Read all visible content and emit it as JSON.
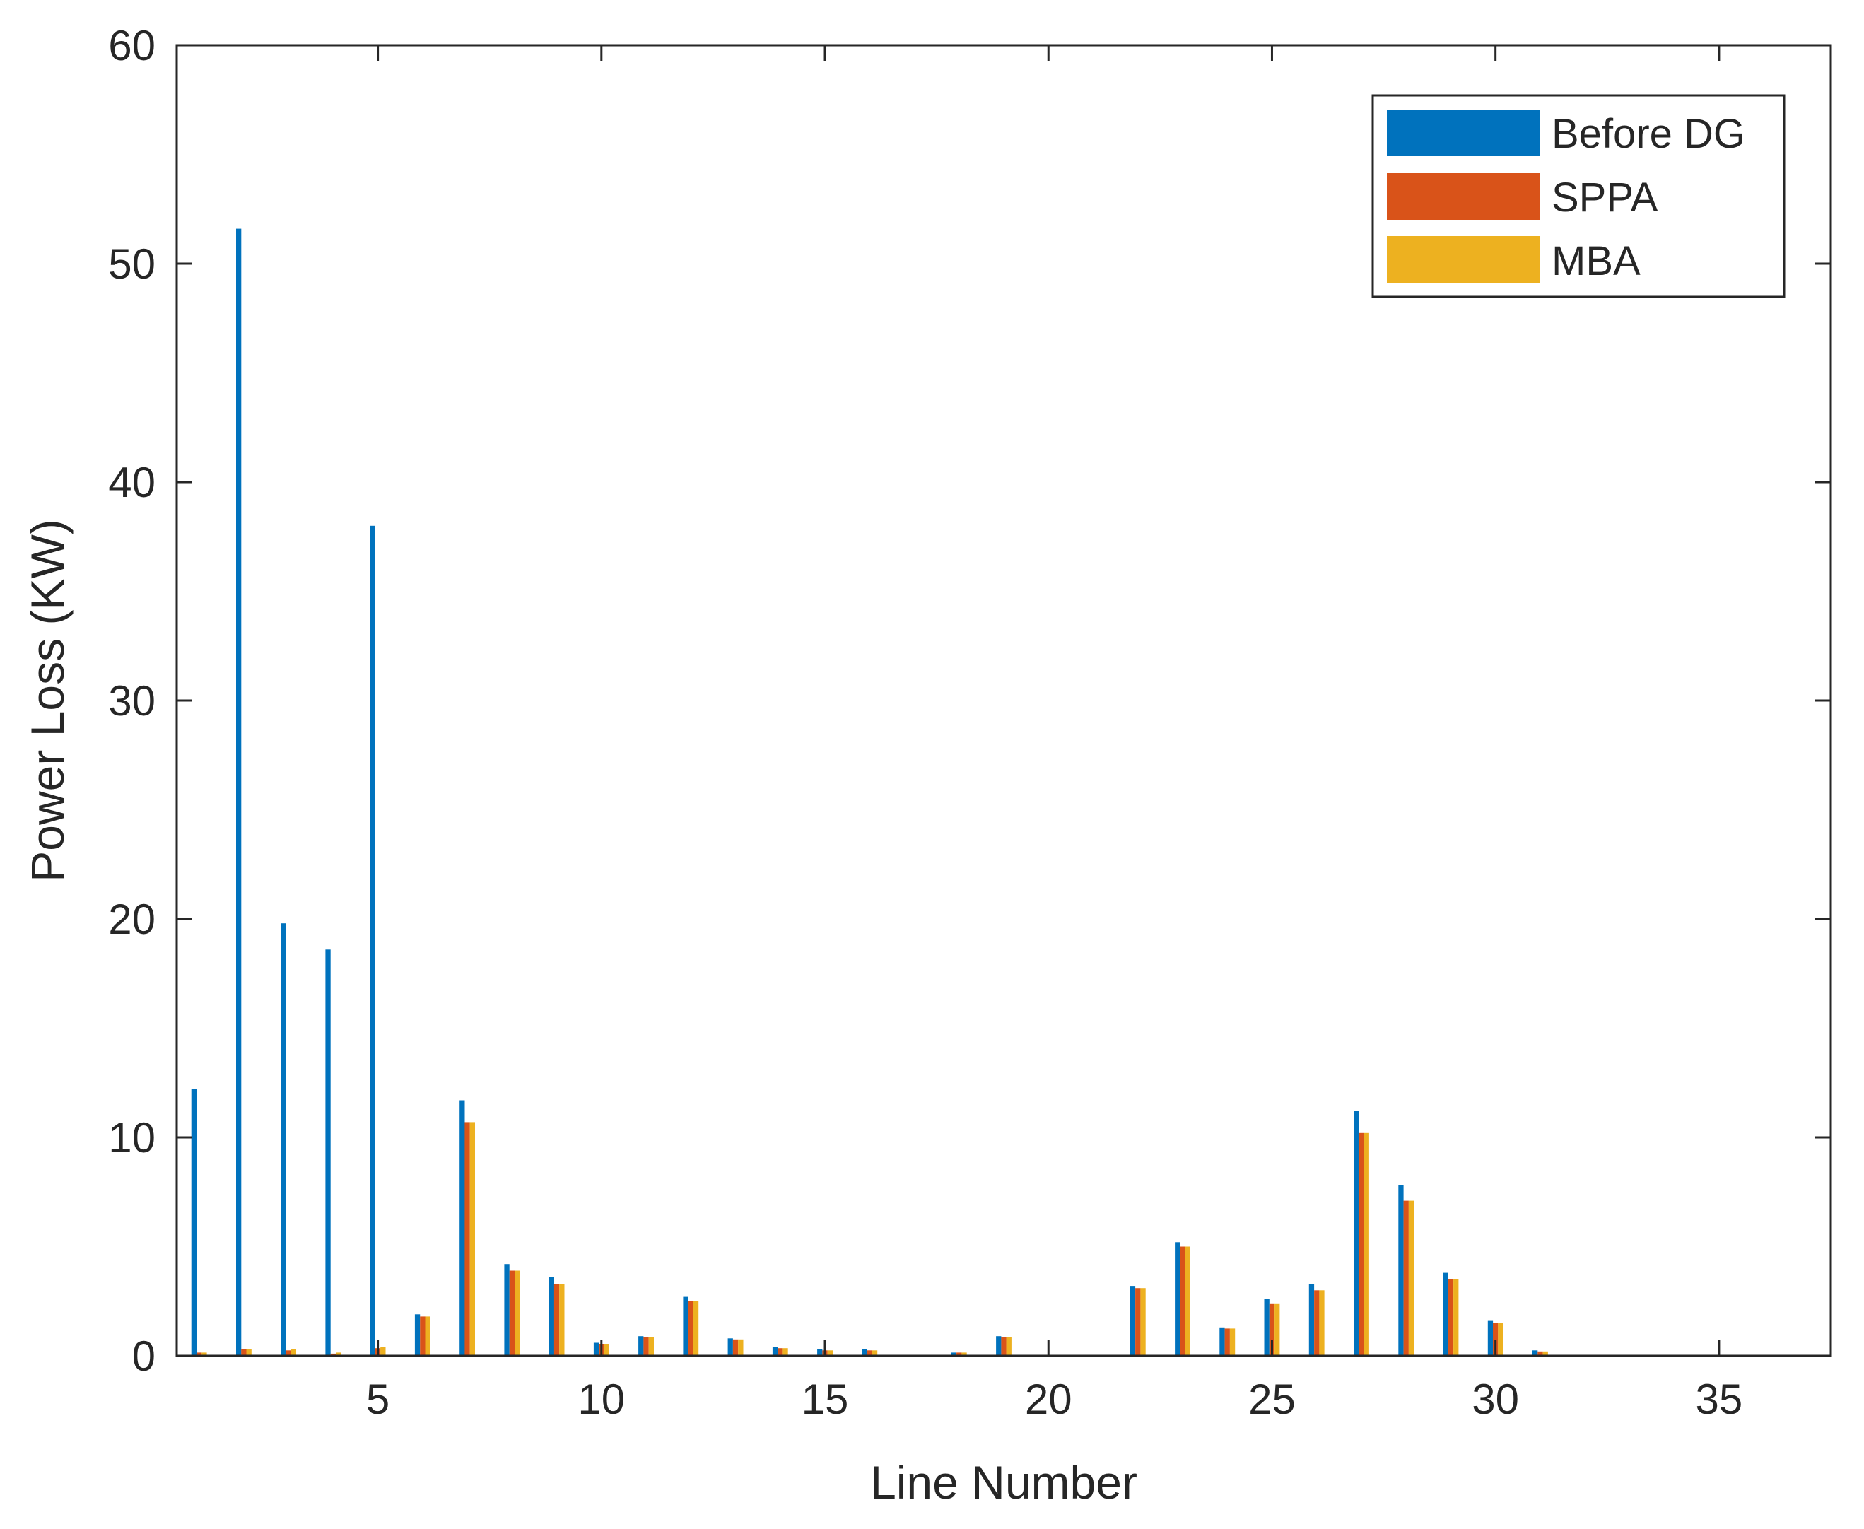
{
  "chart_data": {
    "type": "bar",
    "title": "",
    "xlabel": "Line Number",
    "ylabel": "Power Loss (KW)",
    "xlim": [
      0.5,
      37.5
    ],
    "ylim": [
      0,
      60
    ],
    "xticks": [
      5,
      10,
      15,
      20,
      25,
      30,
      35
    ],
    "yticks": [
      0,
      10,
      20,
      30,
      40,
      50,
      60
    ],
    "legend_position": "top-right",
    "categories": [
      1,
      2,
      3,
      4,
      5,
      6,
      7,
      8,
      9,
      10,
      11,
      12,
      13,
      14,
      15,
      16,
      17,
      18,
      19,
      20,
      21,
      22,
      23,
      24,
      25,
      26,
      27,
      28,
      29,
      30,
      31,
      32,
      33,
      34,
      35,
      36,
      37
    ],
    "series": [
      {
        "name": "Before DG",
        "color": "#0072BD",
        "values": [
          12.2,
          51.6,
          19.8,
          18.6,
          38.0,
          1.9,
          11.7,
          4.2,
          3.6,
          0.6,
          0.9,
          2.7,
          0.8,
          0.4,
          0.3,
          0.3,
          0.05,
          0.15,
          0.9,
          0.05,
          0.0,
          3.2,
          5.2,
          1.3,
          2.6,
          3.3,
          11.2,
          7.8,
          3.8,
          1.6,
          0.25,
          0.0,
          0.0,
          0.0,
          0.0,
          0.0,
          0.0
        ]
      },
      {
        "name": "SPPA",
        "color": "#D95319",
        "values": [
          0.15,
          0.3,
          0.25,
          0.1,
          0.35,
          1.8,
          10.7,
          3.9,
          3.3,
          0.55,
          0.85,
          2.5,
          0.75,
          0.35,
          0.25,
          0.25,
          0.05,
          0.15,
          0.85,
          0.05,
          0.0,
          3.1,
          5.0,
          1.25,
          2.4,
          3.0,
          10.2,
          7.1,
          3.5,
          1.5,
          0.2,
          0.0,
          0.0,
          0.0,
          0.0,
          0.0,
          0.0
        ]
      },
      {
        "name": "MBA",
        "color": "#EDB120",
        "values": [
          0.15,
          0.3,
          0.3,
          0.15,
          0.4,
          1.8,
          10.7,
          3.9,
          3.3,
          0.55,
          0.85,
          2.5,
          0.75,
          0.35,
          0.25,
          0.25,
          0.05,
          0.15,
          0.85,
          0.05,
          0.0,
          3.1,
          5.0,
          1.25,
          2.4,
          3.0,
          10.2,
          7.1,
          3.5,
          1.5,
          0.2,
          0.0,
          0.0,
          0.0,
          0.0,
          0.0,
          0.0
        ]
      }
    ]
  }
}
